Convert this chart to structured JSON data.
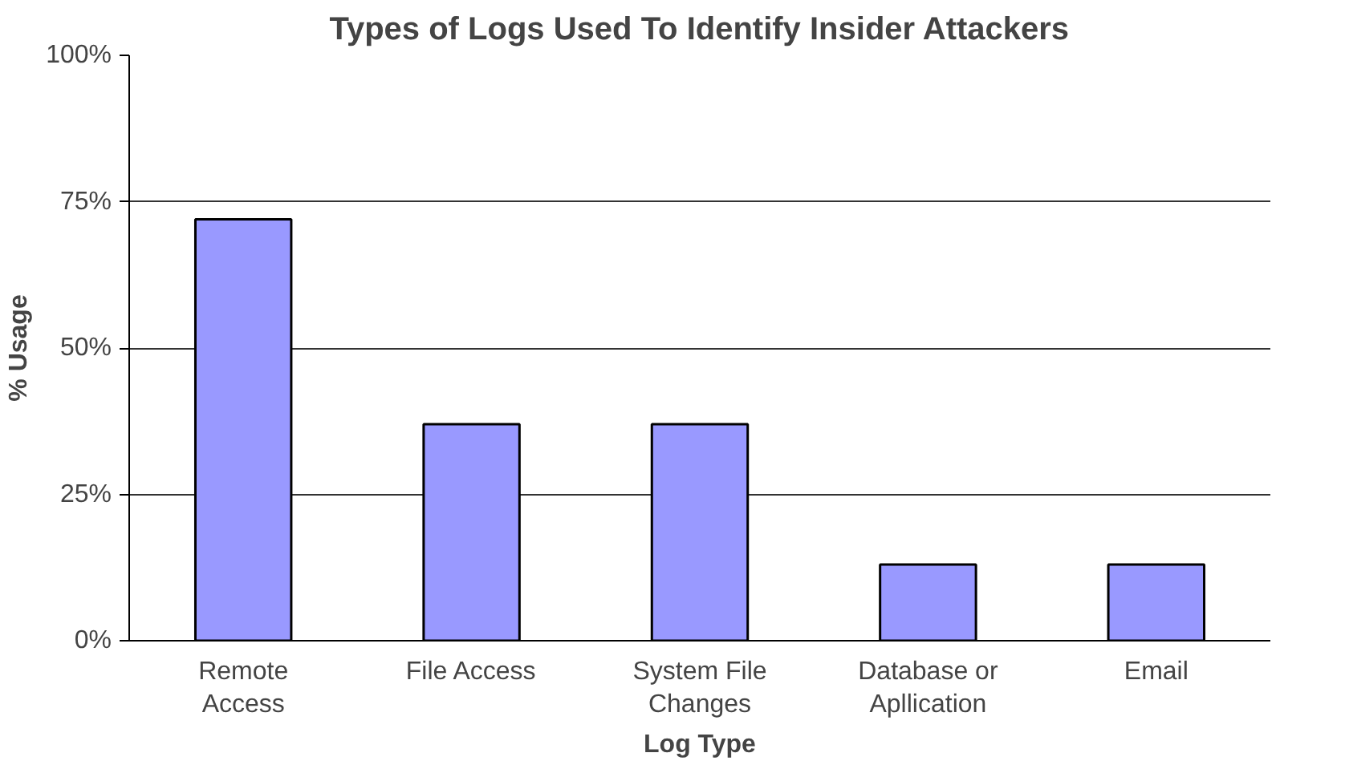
{
  "chart_data": {
    "type": "bar",
    "title": "Types of Logs Used To Identify Insider Attackers",
    "xlabel": "Log Type",
    "ylabel": "% Usage",
    "categories": [
      "Remote Access",
      "File Access",
      "System File Changes",
      "Database or Apllication",
      "Email"
    ],
    "values": [
      72,
      37,
      37,
      13,
      13
    ],
    "color": "#9999ff",
    "ylim": [
      0,
      100
    ],
    "yticks": [
      {
        "value": 0,
        "label": "0%"
      },
      {
        "value": 25,
        "label": "25%"
      },
      {
        "value": 50,
        "label": "50%"
      },
      {
        "value": 75,
        "label": "75%"
      },
      {
        "value": 100,
        "label": "100%"
      }
    ],
    "grid": "y"
  }
}
